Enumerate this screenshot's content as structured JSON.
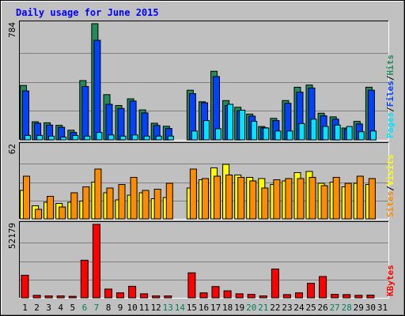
{
  "chart_data": {
    "type": "bar",
    "title": "Daily usage for June 2015",
    "categories": [
      "1",
      "2",
      "3",
      "4",
      "5",
      "6",
      "7",
      "8",
      "9",
      "10",
      "11",
      "12",
      "13",
      "14",
      "15",
      "16",
      "17",
      "18",
      "19",
      "20",
      "21",
      "22",
      "23",
      "24",
      "25",
      "26",
      "27",
      "28",
      "29",
      "30",
      "31"
    ],
    "weekend_days": [
      "6",
      "7",
      "13",
      "14",
      "20",
      "21",
      "27",
      "28"
    ],
    "colors": {
      "hits": "#228B5A",
      "files": "#0042FF",
      "pages": "#00E4FF",
      "visits": "#FFFF00",
      "sites": "#FF8C00",
      "kbytes": "#FF0000",
      "weekend_label": "#00805c",
      "title": "#0000FF",
      "panel_bg": "#C0C0C0"
    },
    "panels": [
      {
        "id": "hits-files-pages",
        "ymax": 784,
        "ymax_label": "784",
        "axis_label_parts": [
          {
            "text": "Pages",
            "color": "#00E4FF"
          },
          {
            "text": "/",
            "color": "#000000"
          },
          {
            "text": "Files",
            "color": "#0042FF"
          },
          {
            "text": "/",
            "color": "#000000"
          },
          {
            "text": "Hits",
            "color": "#228B5A"
          }
        ],
        "series": [
          {
            "key": "hits",
            "values": [
              367,
              122,
              115,
              98,
              65,
              400,
              784,
              305,
              232,
              277,
              202,
              112,
              92,
              0,
              335,
              257,
              463,
              265,
              220,
              174,
              90,
              145,
              265,
              355,
              370,
              180,
              155,
              80,
              125,
              355,
              0
            ]
          },
          {
            "key": "files",
            "values": [
              330,
              112,
              100,
              85,
              50,
              360,
              672,
              240,
              212,
              262,
              182,
              97,
              77,
              0,
              312,
              250,
              427,
              232,
              197,
              160,
              82,
              130,
              247,
              322,
              350,
              162,
              140,
              72,
              107,
              335,
              0
            ]
          },
          {
            "key": "pages",
            "values": [
              30,
              30,
              25,
              18,
              30,
              25,
              50,
              33,
              25,
              33,
              25,
              25,
              25,
              0,
              60,
              130,
              75,
              240,
              200,
              125,
              80,
              60,
              60,
              110,
              140,
              90,
              100,
              90,
              55,
              60,
              0
            ]
          }
        ]
      },
      {
        "id": "visits-sites",
        "ymax": 62,
        "ymax_label": "62",
        "axis_label_parts": [
          {
            "text": "Sites",
            "color": "#FF8C00"
          },
          {
            "text": "/",
            "color": "#000000"
          },
          {
            "text": "Visits",
            "color": "#FFFF00"
          }
        ],
        "series": [
          {
            "key": "visits",
            "values": [
              24,
              11,
              14,
              13,
              14,
              15,
              31,
              22,
              16,
              20,
              22,
              17,
              18,
              0,
              26,
              33,
              43,
              46,
              37,
              35,
              34,
              29,
              32,
              39,
              40,
              30,
              31,
              27,
              30,
              29,
              0
            ]
          },
          {
            "key": "sites",
            "values": [
              36,
              8,
              19,
              10,
              22,
              27,
              42,
              26,
              29,
              35,
              24,
              25,
              30,
              0,
              42,
              34,
              36,
              37,
              35,
              32,
              26,
              33,
              34,
              34,
              35,
              28,
              35,
              30,
              36,
              34,
              0
            ]
          }
        ]
      },
      {
        "id": "kbytes",
        "ymax": 52179,
        "ymax_label": "52179",
        "axis_label_parts": [
          {
            "text": "KBytes",
            "color": "#FF0000"
          }
        ],
        "series": [
          {
            "key": "kbytes",
            "values": [
              16022,
              1780,
              1424,
              1424,
              1068,
              26700,
              52179,
              6230,
              3560,
              8188,
              2848,
              1424,
              1424,
              0,
              17800,
              3560,
              8010,
              4984,
              2848,
              2492,
              1424,
              20470,
              2314,
              3560,
              10324,
              15130,
              2492,
              2314,
              1780,
              1958,
              0
            ]
          }
        ]
      }
    ]
  }
}
